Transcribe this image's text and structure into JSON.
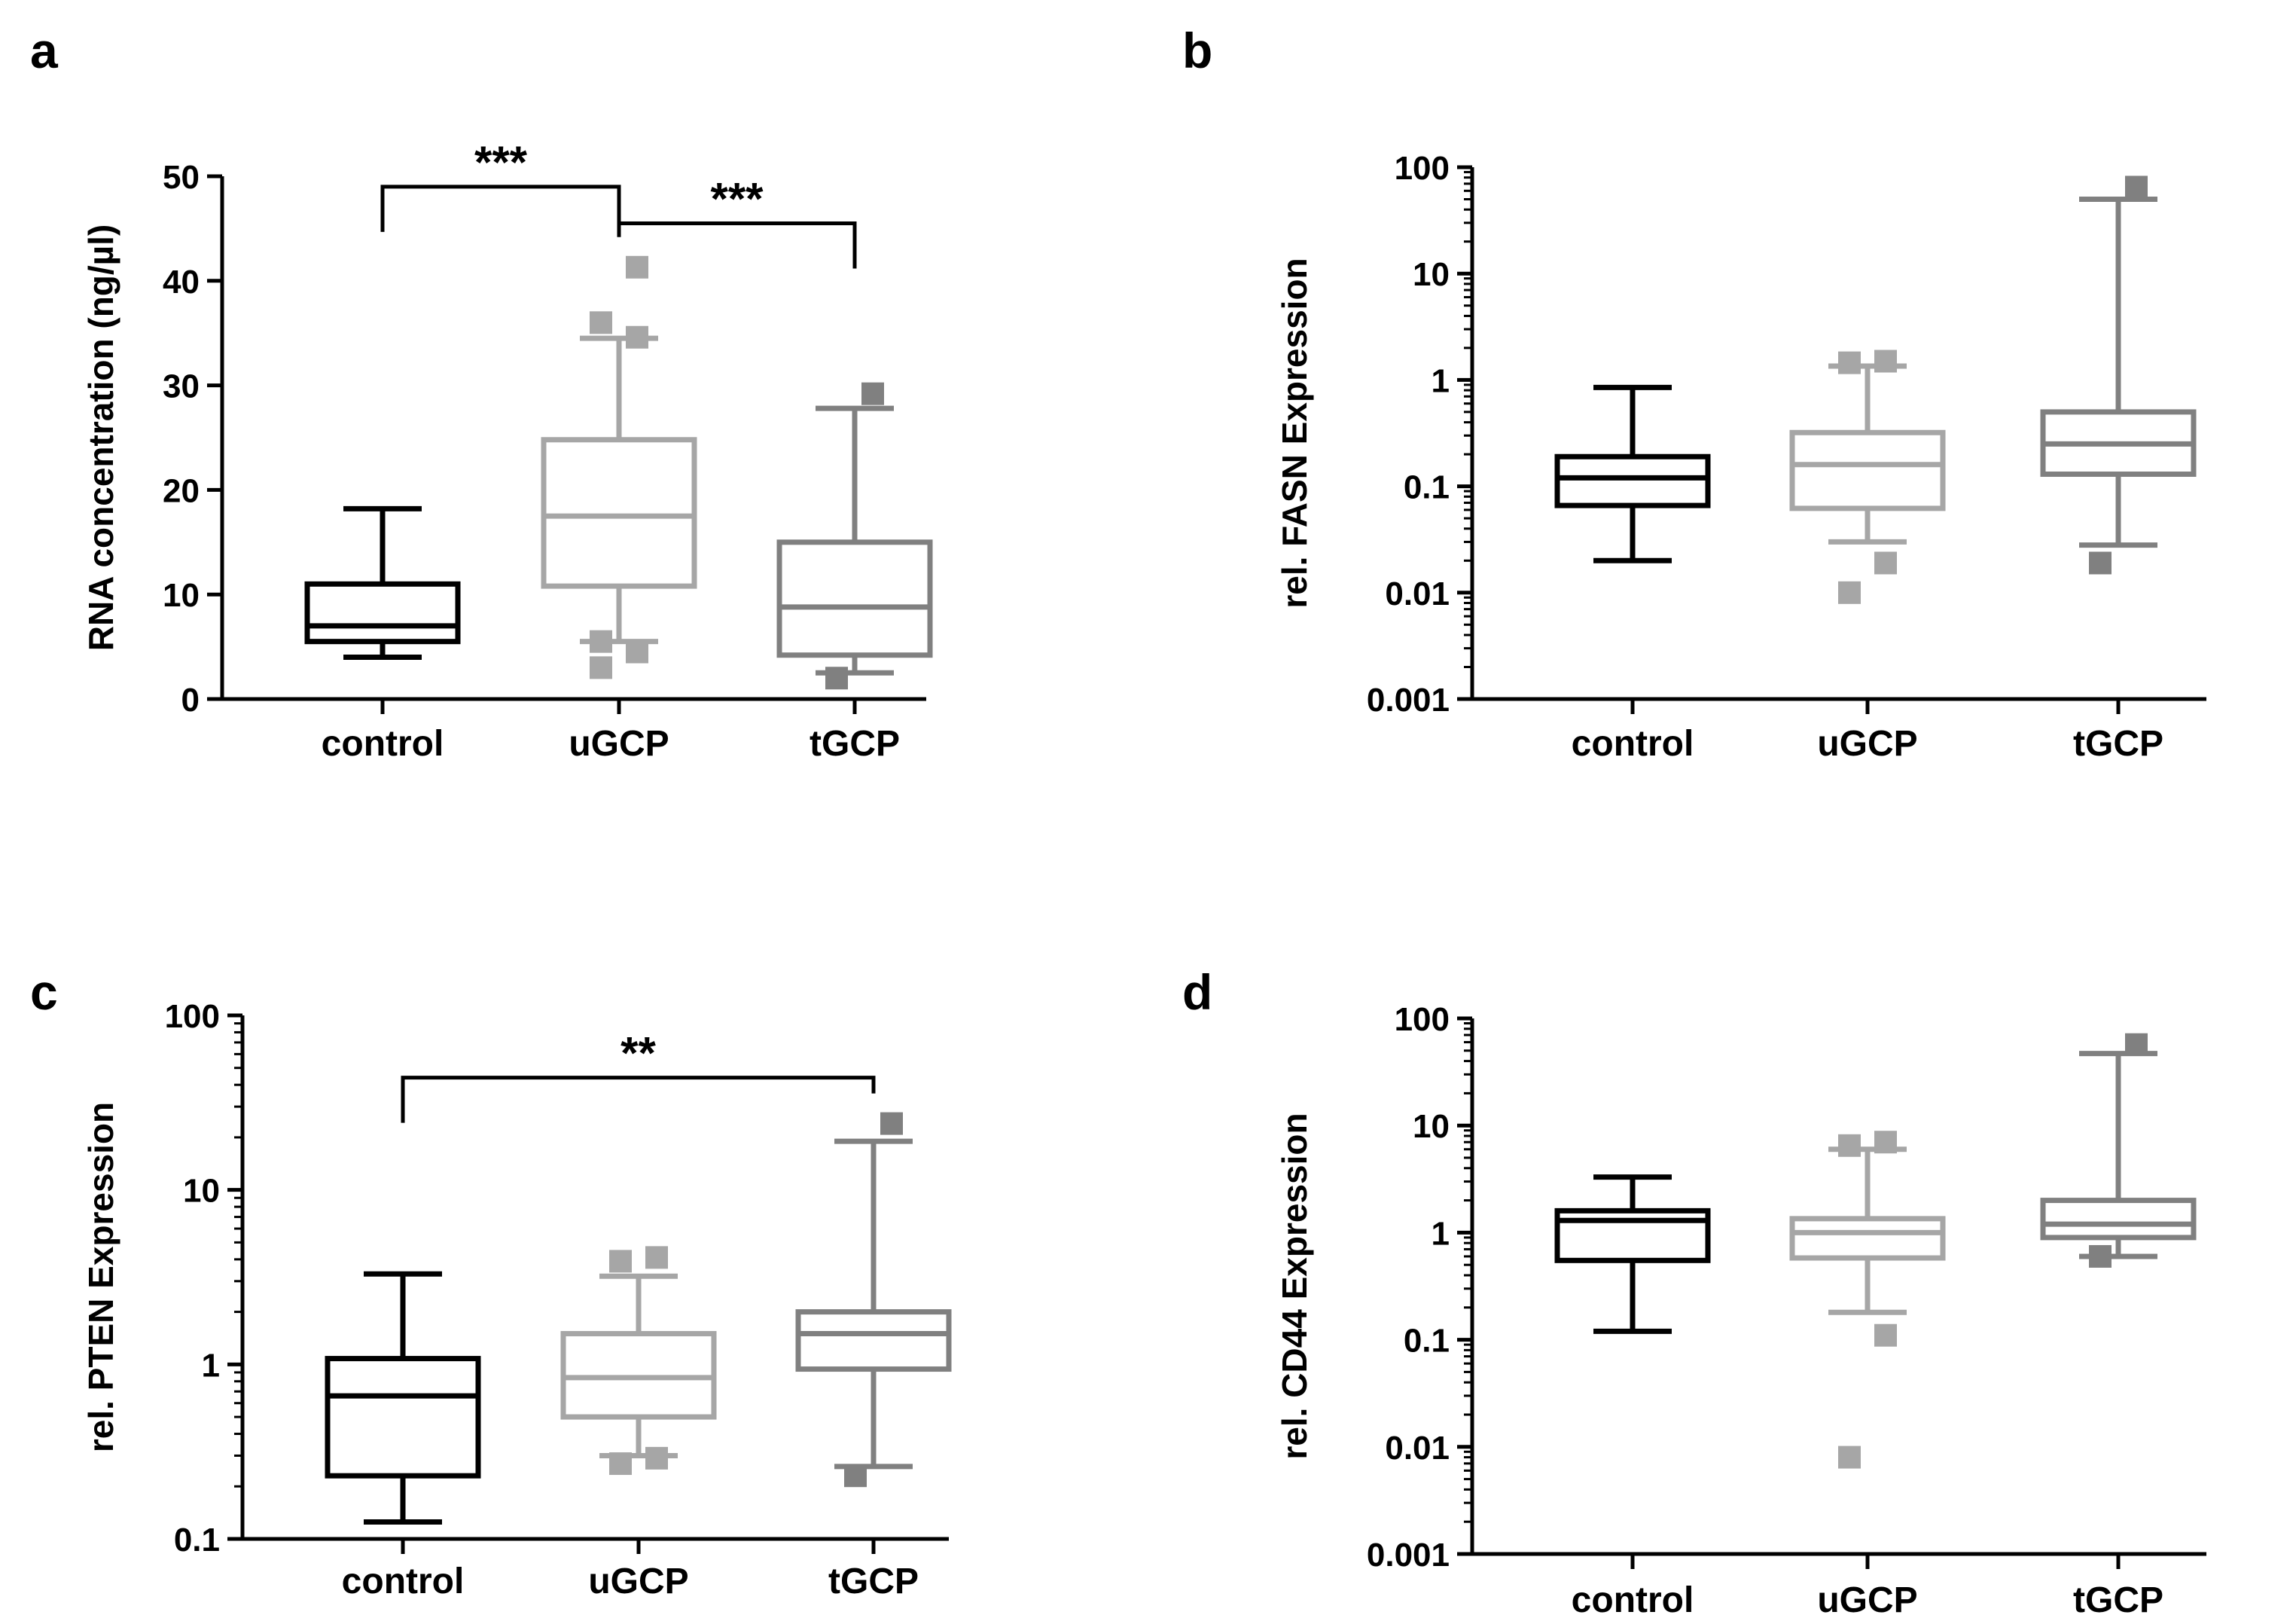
{
  "chart_data": [
    {
      "panel_label": "a",
      "type": "box",
      "categories": [
        "control",
        "uGCP",
        "tGCP"
      ],
      "ylabel": "RNA concentration (ng/µl)",
      "yscale": "linear",
      "ylim": [
        0,
        50
      ],
      "yticks": [
        0,
        10,
        20,
        30,
        40,
        50
      ],
      "ytick_labels": [
        "0",
        "10",
        "20",
        "30",
        "40",
        "50"
      ],
      "boxes": [
        {
          "name": "control",
          "whislo": 4,
          "q1": 5.5,
          "med": 7,
          "q3": 11,
          "whishi": 18.2,
          "outliers": []
        },
        {
          "name": "uGCP",
          "whislo": 5.5,
          "q1": 10.8,
          "med": 17.5,
          "q3": 24.8,
          "whishi": 34.5,
          "outliers": [
            3,
            4.5,
            5.5,
            34.6,
            36,
            41.3
          ]
        },
        {
          "name": "tGCP",
          "whislo": 2.5,
          "q1": 4.2,
          "med": 8.8,
          "q3": 15,
          "whishi": 27.8,
          "outliers": [
            2,
            29.2
          ]
        }
      ],
      "brackets": [
        {
          "from": "control",
          "to": "uGCP",
          "label": "***",
          "y": 49
        },
        {
          "from": "uGCP",
          "to": "tGCP",
          "label": "***",
          "y": 45.5
        }
      ]
    },
    {
      "panel_label": "b",
      "type": "box",
      "categories": [
        "control",
        "uGCP",
        "tGCP"
      ],
      "ylabel": "rel. FASN Expression",
      "yscale": "log",
      "ylim": [
        0.001,
        100
      ],
      "yticks": [
        0.001,
        0.01,
        0.1,
        1,
        10,
        100
      ],
      "ytick_labels": [
        "0.001",
        "0.01",
        "0.1",
        "1",
        "10",
        "100"
      ],
      "boxes": [
        {
          "name": "control",
          "whislo": 0.02,
          "q1": 0.066,
          "med": 0.12,
          "q3": 0.19,
          "whishi": 0.85,
          "outliers": []
        },
        {
          "name": "uGCP",
          "whislo": 0.03,
          "q1": 0.062,
          "med": 0.16,
          "q3": 0.32,
          "whishi": 1.35,
          "outliers": [
            0.01,
            0.019,
            1.45,
            1.5
          ]
        },
        {
          "name": "tGCP",
          "whislo": 0.028,
          "q1": 0.13,
          "med": 0.25,
          "q3": 0.5,
          "whishi": 50,
          "outliers": [
            0.019,
            65
          ]
        }
      ],
      "brackets": []
    },
    {
      "panel_label": "c",
      "type": "box",
      "categories": [
        "control",
        "uGCP",
        "tGCP"
      ],
      "ylabel": "rel. PTEN Expression",
      "yscale": "log",
      "ylim": [
        0.1,
        100
      ],
      "yticks": [
        0.1,
        1,
        10,
        100
      ],
      "ytick_labels": [
        "0.1",
        "1",
        "10",
        "100"
      ],
      "boxes": [
        {
          "name": "control",
          "whislo": 0.125,
          "q1": 0.23,
          "med": 0.66,
          "q3": 1.08,
          "whishi": 3.3,
          "outliers": []
        },
        {
          "name": "uGCP",
          "whislo": 0.3,
          "q1": 0.5,
          "med": 0.84,
          "q3": 1.5,
          "whishi": 3.2,
          "outliers": [
            0.27,
            0.29,
            3.9,
            4.1
          ]
        },
        {
          "name": "tGCP",
          "whislo": 0.26,
          "q1": 0.94,
          "med": 1.5,
          "q3": 2,
          "whishi": 19,
          "outliers": [
            0.23,
            24
          ]
        }
      ],
      "brackets": [
        {
          "from": "control",
          "to": "tGCP",
          "label": "**",
          "y": 44
        }
      ]
    },
    {
      "panel_label": "d",
      "type": "box",
      "categories": [
        "control",
        "uGCP",
        "tGCP"
      ],
      "ylabel": "rel. CD44  Expression",
      "yscale": "log",
      "ylim": [
        0.001,
        100
      ],
      "yticks": [
        0.001,
        0.01,
        0.1,
        1,
        10,
        100
      ],
      "ytick_labels": [
        "0.001",
        "0.01",
        "0.1",
        "1",
        "10",
        "100"
      ],
      "boxes": [
        {
          "name": "control",
          "whislo": 0.12,
          "q1": 0.55,
          "med": 1.3,
          "q3": 1.6,
          "whishi": 3.3,
          "outliers": []
        },
        {
          "name": "uGCP",
          "whislo": 0.18,
          "q1": 0.58,
          "med": 1,
          "q3": 1.35,
          "whishi": 6,
          "outliers": [
            0.008,
            0.11,
            6.5,
            7
          ]
        },
        {
          "name": "tGCP",
          "whislo": 0.6,
          "q1": 0.9,
          "med": 1.2,
          "q3": 2,
          "whishi": 47,
          "outliers": [
            0.6,
            57
          ]
        }
      ],
      "brackets": []
    }
  ],
  "colors": {
    "control": "#000000",
    "uGCP": "#a6a6a6",
    "tGCP": "#808080",
    "axis": "#000000"
  }
}
